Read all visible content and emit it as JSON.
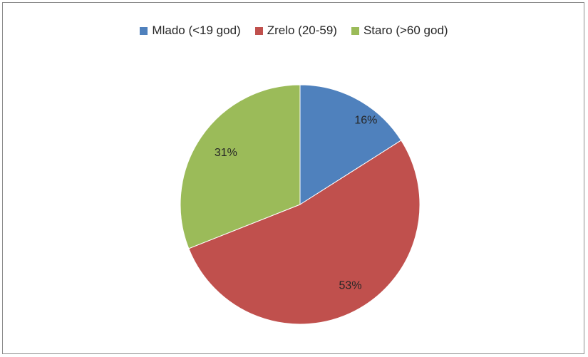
{
  "chart_data": {
    "type": "pie",
    "title": "",
    "legend_position": "top",
    "slices": [
      {
        "name": "Mlado (<19 god)",
        "value": 16,
        "label": "16%",
        "color": "#4f81bd"
      },
      {
        "name": "Zrelo (20-59)",
        "value": 53,
        "label": "53%",
        "color": "#c0504d"
      },
      {
        "name": "Staro (>60 god)",
        "value": 31,
        "label": "31%",
        "color": "#9bbb59"
      }
    ]
  }
}
